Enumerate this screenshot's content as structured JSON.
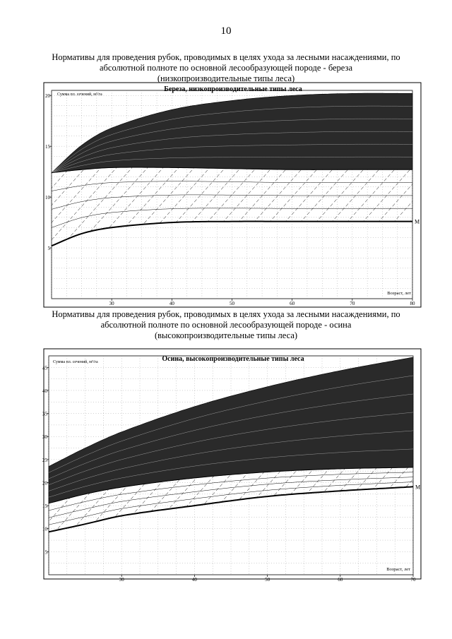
{
  "page": {
    "number": "10"
  },
  "caption1": [
    "Нормативы для проведения рубок, проводимых в целях ухода за лесными насаждениями, по",
    "абсолютной полноте по основной лесообразующей породе - береза",
    "(низкопроизводительные типы леса)"
  ],
  "caption2": [
    "Нормативы для проведения рубок, проводимых в целях ухода за лесными насаждениями, по",
    "абсолютной полноте по основной лесообразующей породе - осина",
    "(высокопроизводительные типы леса)"
  ],
  "chart_data": [
    {
      "type": "area",
      "title": "Береза, низкопроизводительные типы леса",
      "ylabel": "Сумма пл. сечений, м²/га",
      "xlabel": "Возраст, лет",
      "xlim": [
        20,
        80
      ],
      "ylim": [
        0,
        20.5
      ],
      "xticks": [
        30,
        40,
        50,
        60,
        70,
        80
      ],
      "yticks": [
        5,
        10,
        15,
        20
      ],
      "grid": true,
      "colors": {
        "band": "#2a2a2a",
        "line": "#000000"
      },
      "curve_end_label": "M",
      "series": [
        {
          "x": [
            20,
            25,
            30,
            40,
            50,
            60,
            70,
            80
          ],
          "values": [
            12.4,
            15.1,
            16.8,
            18.6,
            19.5,
            20.0,
            20.2,
            20.2
          ]
        },
        {
          "x": [
            20,
            25,
            30,
            40,
            50,
            60,
            70,
            80
          ],
          "values": [
            12.4,
            12.7,
            12.9,
            12.9,
            12.8,
            12.7,
            12.7,
            12.7
          ]
        },
        {
          "x": [
            20,
            25,
            30,
            40,
            50,
            60,
            70,
            80
          ],
          "values": [
            5.2,
            6.4,
            7.0,
            7.5,
            7.6,
            7.6,
            7.6,
            7.6
          ]
        }
      ]
    },
    {
      "type": "area",
      "title": "Осина, высокопроизводительные типы леса",
      "ylabel": "Сумма пл. сечений, м²/га",
      "xlabel": "Возраст, лет",
      "xlim": [
        20,
        70
      ],
      "ylim": [
        0,
        47.5
      ],
      "xticks": [
        30,
        40,
        50,
        60,
        70
      ],
      "yticks": [
        5,
        10,
        15,
        20,
        25,
        30,
        35,
        40,
        45
      ],
      "grid": true,
      "colors": {
        "band": "#2a2a2a",
        "line": "#000000"
      },
      "curve_end_label": "M",
      "series": [
        {
          "x": [
            20,
            25,
            30,
            40,
            50,
            60,
            70
          ],
          "values": [
            23.5,
            27.5,
            31.0,
            36.5,
            40.8,
            44.3,
            47.2
          ]
        },
        {
          "x": [
            20,
            25,
            30,
            40,
            50,
            60,
            70
          ],
          "values": [
            15.5,
            17.5,
            19.0,
            21.0,
            22.3,
            23.0,
            23.3
          ]
        },
        {
          "x": [
            20,
            25,
            30,
            40,
            50,
            60,
            70
          ],
          "values": [
            9.3,
            11.0,
            12.8,
            15.0,
            17.0,
            18.2,
            19.1
          ]
        }
      ]
    }
  ]
}
